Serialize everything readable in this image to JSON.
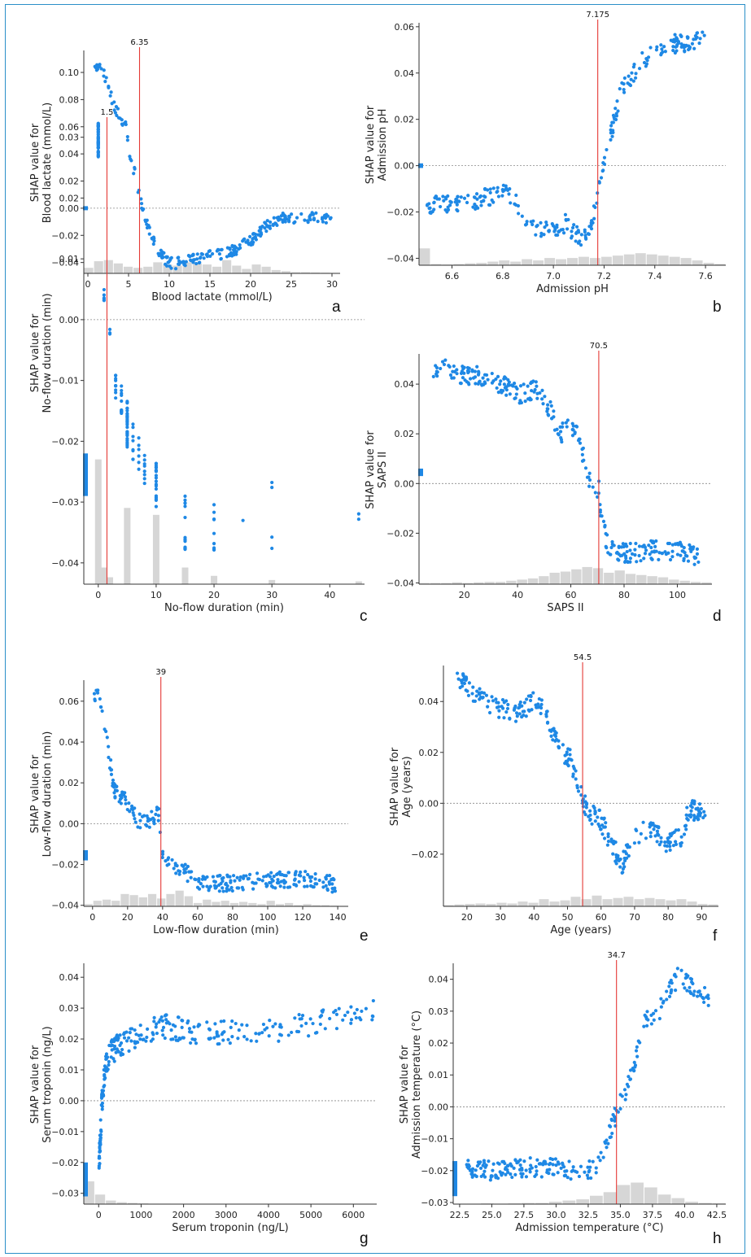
{
  "figure": {
    "border_color": "#2a8fc8",
    "point_color": "#1e88e5",
    "cut_line_color": "#e53935",
    "zero_line_color": "#888888",
    "hist_color": "#d6d6d6"
  },
  "chart_data": [
    {
      "panel": "a",
      "type": "scatter",
      "xlabel": "Blood lactate (mmol/L)",
      "ylabel": [
        "SHAP value for",
        "Blood lactate (mmol/L)"
      ],
      "xlim": [
        -0.5,
        31
      ],
      "ylim": [
        -0.048,
        0.115
      ],
      "xticks": [
        0,
        5,
        10,
        15,
        20,
        25,
        30
      ],
      "yticks": [
        -0.04,
        -0.02,
        0.0,
        0.02,
        0.04,
        0.06,
        0.08,
        0.1
      ],
      "ytick_labels": [
        "−0.04",
        "−0.02",
        "0.00",
        "0.02",
        "0.04",
        "0.06",
        "0.08",
        "0.10"
      ],
      "xtick_labels": [
        "0",
        "5",
        "10",
        "15",
        "20",
        "25",
        "30"
      ],
      "cutoff": {
        "value": 6.35,
        "label": "6.35"
      },
      "curve": [
        [
          0.7,
          0.106
        ],
        [
          1.5,
          0.103
        ],
        [
          2.5,
          0.092
        ],
        [
          3.2,
          0.075
        ],
        [
          4.0,
          0.066
        ],
        [
          4.6,
          0.062
        ],
        [
          5.0,
          0.045
        ],
        [
          5.6,
          0.03
        ],
        [
          6.3,
          0.012
        ],
        [
          7.0,
          -0.008
        ],
        [
          7.8,
          -0.02
        ],
        [
          8.6,
          -0.03
        ],
        [
          9.5,
          -0.038
        ],
        [
          10.5,
          -0.041
        ],
        [
          12.0,
          -0.039
        ],
        [
          14.0,
          -0.036
        ],
        [
          16.0,
          -0.034
        ],
        [
          18.0,
          -0.031
        ],
        [
          20.0,
          -0.024
        ],
        [
          22.0,
          -0.013
        ],
        [
          23.5,
          -0.008
        ],
        [
          25.0,
          -0.007
        ],
        [
          30.0,
          -0.007
        ]
      ],
      "noise": 0.004,
      "n_points": 260,
      "hist": [
        0.25,
        0.55,
        0.6,
        0.45,
        0.3,
        0.25,
        0.3,
        0.5,
        0.4,
        0.35,
        0.5,
        0.45,
        0.4,
        0.3,
        0.6,
        0.35,
        0.2,
        0.4,
        0.3,
        0.15,
        0.1,
        0.05,
        0.05,
        0.04,
        0.03,
        0.02
      ],
      "left_marker": {
        "y": 0.0,
        "h": 0.003
      }
    },
    {
      "panel": "b",
      "type": "scatter",
      "xlabel": "Admission pH",
      "ylabel": [
        "SHAP value for",
        "Admission pH"
      ],
      "xlim": [
        6.47,
        7.68
      ],
      "ylim": [
        -0.043,
        0.061
      ],
      "xticks": [
        6.6,
        6.8,
        7.0,
        7.2,
        7.4,
        7.6
      ],
      "yticks": [
        -0.04,
        -0.02,
        0.0,
        0.02,
        0.04,
        0.06
      ],
      "ytick_labels": [
        "−0.04",
        "−0.02",
        "0.00",
        "0.02",
        "0.04",
        "0.06"
      ],
      "xtick_labels": [
        "6.6",
        "6.8",
        "7.0",
        "7.2",
        "7.4",
        "7.6"
      ],
      "cutoff": {
        "value": 7.175,
        "label": "7.175"
      },
      "curve": [
        [
          6.5,
          -0.017
        ],
        [
          6.6,
          -0.016
        ],
        [
          6.7,
          -0.015
        ],
        [
          6.8,
          -0.011
        ],
        [
          6.85,
          -0.015
        ],
        [
          6.9,
          -0.026
        ],
        [
          6.95,
          -0.028
        ],
        [
          7.0,
          -0.027
        ],
        [
          7.05,
          -0.025
        ],
        [
          7.1,
          -0.031
        ],
        [
          7.15,
          -0.028
        ],
        [
          7.175,
          -0.01
        ],
        [
          7.2,
          0.0
        ],
        [
          7.23,
          0.015
        ],
        [
          7.26,
          0.03
        ],
        [
          7.3,
          0.038
        ],
        [
          7.35,
          0.045
        ],
        [
          7.4,
          0.05
        ],
        [
          7.45,
          0.052
        ],
        [
          7.5,
          0.053
        ],
        [
          7.6,
          0.054
        ]
      ],
      "noise": 0.004,
      "n_points": 280,
      "hist": [
        0.7,
        0.05,
        0.03,
        0.05,
        0.08,
        0.1,
        0.15,
        0.2,
        0.15,
        0.25,
        0.2,
        0.3,
        0.25,
        0.3,
        0.35,
        0.3,
        0.35,
        0.4,
        0.45,
        0.5,
        0.45,
        0.4,
        0.35,
        0.3,
        0.2,
        0.1,
        0.05
      ],
      "left_marker": {
        "y": 0.0,
        "h": 0.002
      }
    },
    {
      "panel": "c",
      "type": "scatter",
      "xlabel": "No-flow duration (min)",
      "ylabel": [
        "SHAP value for",
        "No-flow duration (min)"
      ],
      "xlim": [
        -2.5,
        46
      ],
      "ylim": [
        -0.0435,
        0.0325
      ],
      "xticks": [
        0,
        10,
        20,
        30,
        40
      ],
      "yticks": [
        -0.04,
        -0.03,
        -0.02,
        -0.01,
        0.0,
        0.01,
        0.02,
        0.03
      ],
      "ytick_labels": [
        "−0.04",
        "−0.03",
        "−0.02",
        "−0.01",
        "0.00",
        "0.01",
        "0.02",
        "0.03"
      ],
      "xtick_labels": [
        "0",
        "10",
        "20",
        "30",
        "40"
      ],
      "cutoff": {
        "value": 1.5,
        "label": "1.5"
      },
      "discrete": [
        [
          0,
          0.0295,
          0.003,
          50
        ],
        [
          1,
          0.004,
          0.001,
          6
        ],
        [
          2,
          -0.002,
          0.0005,
          3
        ],
        [
          3,
          -0.011,
          0.002,
          10
        ],
        [
          4,
          -0.013,
          0.0025,
          12
        ],
        [
          5,
          -0.017,
          0.004,
          30
        ],
        [
          6,
          -0.02,
          0.003,
          8
        ],
        [
          7,
          -0.022,
          0.003,
          6
        ],
        [
          8,
          -0.025,
          0.003,
          8
        ],
        [
          10,
          -0.027,
          0.004,
          20
        ],
        [
          15,
          -0.033,
          0.005,
          16
        ],
        [
          20,
          -0.034,
          0.004,
          10
        ],
        [
          25,
          -0.033,
          0.0005,
          1
        ],
        [
          30,
          -0.032,
          0.006,
          4
        ],
        [
          45,
          -0.033,
          0.003,
          2
        ]
      ],
      "hist_bars": [
        [
          0,
          0.9
        ],
        [
          1,
          0.12
        ],
        [
          2,
          0.05
        ],
        [
          5,
          0.55
        ],
        [
          10,
          0.5
        ],
        [
          15,
          0.12
        ],
        [
          20,
          0.06
        ],
        [
          30,
          0.03
        ],
        [
          45,
          0.02
        ]
      ],
      "left_marker": {
        "y": -0.0255,
        "h": 0.007
      }
    },
    {
      "panel": "d",
      "type": "scatter",
      "xlabel": "SAPS II",
      "ylabel": [
        "SHAP value for",
        "SAPS II"
      ],
      "xlim": [
        3,
        113
      ],
      "ylim": [
        -0.0405,
        0.0515
      ],
      "xticks": [
        20,
        40,
        60,
        80,
        100
      ],
      "yticks": [
        -0.04,
        -0.02,
        0.0,
        0.02,
        0.04
      ],
      "ytick_labels": [
        "−0.04",
        "−0.02",
        "0.00",
        "0.02",
        "0.04"
      ],
      "xtick_labels": [
        "20",
        "40",
        "60",
        "80",
        "100"
      ],
      "cutoff": {
        "value": 70.5,
        "label": "70.5"
      },
      "curve": [
        [
          8,
          0.047
        ],
        [
          20,
          0.044
        ],
        [
          30,
          0.042
        ],
        [
          40,
          0.036
        ],
        [
          47,
          0.038
        ],
        [
          52,
          0.03
        ],
        [
          56,
          0.02
        ],
        [
          60,
          0.025
        ],
        [
          63,
          0.018
        ],
        [
          66,
          0.005
        ],
        [
          68,
          0.0
        ],
        [
          70.5,
          -0.002
        ],
        [
          71.5,
          -0.015
        ],
        [
          74,
          -0.025
        ],
        [
          80,
          -0.028
        ],
        [
          90,
          -0.027
        ],
        [
          100,
          -0.027
        ],
        [
          108,
          -0.029
        ]
      ],
      "noise": 0.004,
      "n_points": 300,
      "hist": [
        0.05,
        0.05,
        0.05,
        0.08,
        0.05,
        0.08,
        0.1,
        0.1,
        0.15,
        0.2,
        0.25,
        0.35,
        0.5,
        0.55,
        0.65,
        0.75,
        0.7,
        0.5,
        0.6,
        0.45,
        0.4,
        0.35,
        0.3,
        0.2,
        0.15,
        0.1,
        0.08
      ],
      "left_marker": {
        "y": 0.0045,
        "h": 0.003
      }
    },
    {
      "panel": "e",
      "type": "scatter",
      "xlabel": "Low-flow duration (min)",
      "ylabel": [
        "SHAP value for",
        "Low-flow duration (min)"
      ],
      "xlim": [
        -5,
        146
      ],
      "ylim": [
        -0.0405,
        0.0695
      ],
      "xticks": [
        0,
        20,
        40,
        60,
        80,
        100,
        120,
        140
      ],
      "yticks": [
        -0.04,
        -0.02,
        0.0,
        0.02,
        0.04,
        0.06
      ],
      "ytick_labels": [
        "−0.04",
        "−0.02",
        "0.00",
        "0.02",
        "0.04",
        "0.06"
      ],
      "xtick_labels": [
        "0",
        "20",
        "40",
        "60",
        "80",
        "100",
        "120",
        "140"
      ],
      "cutoff": {
        "value": 39,
        "label": "39"
      },
      "curve": [
        [
          1,
          0.064
        ],
        [
          3,
          0.063
        ],
        [
          5,
          0.055
        ],
        [
          8,
          0.045
        ],
        [
          10,
          0.03
        ],
        [
          12,
          0.017
        ],
        [
          15,
          0.014
        ],
        [
          20,
          0.01
        ],
        [
          25,
          0.002
        ],
        [
          30,
          0.0
        ],
        [
          35,
          0.003
        ],
        [
          38,
          0.005
        ],
        [
          40,
          -0.015
        ],
        [
          45,
          -0.019
        ],
        [
          55,
          -0.025
        ],
        [
          60,
          -0.03
        ],
        [
          80,
          -0.029
        ],
        [
          100,
          -0.028
        ],
        [
          120,
          -0.027
        ],
        [
          140,
          -0.03
        ]
      ],
      "noise": 0.004,
      "n_points": 280,
      "hist": [
        0.1,
        0.25,
        0.3,
        0.25,
        0.55,
        0.5,
        0.4,
        0.55,
        0.35,
        0.55,
        0.7,
        0.45,
        0.15,
        0.3,
        0.2,
        0.25,
        0.15,
        0.2,
        0.15,
        0.1,
        0.25,
        0.1,
        0.15,
        0.05,
        0.1,
        0.05,
        0.05,
        0.03,
        0.02
      ],
      "left_marker": {
        "y": -0.0155,
        "h": 0.005
      }
    },
    {
      "panel": "f",
      "type": "scatter",
      "xlabel": "Age (years)",
      "ylabel": [
        "SHAP value for",
        "Age (years)"
      ],
      "xlim": [
        13,
        95
      ],
      "ylim": [
        -0.0405,
        0.0535
      ],
      "xticks": [
        20,
        30,
        40,
        50,
        60,
        70,
        80,
        90
      ],
      "yticks": [
        -0.02,
        0.0,
        0.02,
        0.04
      ],
      "ytick_labels": [
        "−0.02",
        "0.00",
        "0.02",
        "0.04"
      ],
      "xtick_labels": [
        "20",
        "30",
        "40",
        "50",
        "60",
        "70",
        "80",
        "90"
      ],
      "cutoff": {
        "value": 54.5,
        "label": "54.5"
      },
      "curve": [
        [
          17,
          0.05
        ],
        [
          20,
          0.046
        ],
        [
          25,
          0.04
        ],
        [
          30,
          0.037
        ],
        [
          35,
          0.035
        ],
        [
          40,
          0.04
        ],
        [
          43,
          0.038
        ],
        [
          45,
          0.03
        ],
        [
          48,
          0.02
        ],
        [
          51,
          0.017
        ],
        [
          53,
          0.007
        ],
        [
          54.5,
          0.002
        ],
        [
          56,
          -0.003
        ],
        [
          60,
          -0.007
        ],
        [
          64,
          -0.018
        ],
        [
          66,
          -0.025
        ],
        [
          70,
          -0.012
        ],
        [
          75,
          -0.01
        ],
        [
          80,
          -0.016
        ],
        [
          84,
          -0.013
        ],
        [
          86,
          -0.003
        ],
        [
          91,
          -0.002
        ]
      ],
      "noise": 0.004,
      "n_points": 320,
      "hist": [
        0.05,
        0.08,
        0.1,
        0.12,
        0.1,
        0.15,
        0.12,
        0.2,
        0.15,
        0.3,
        0.2,
        0.25,
        0.4,
        0.3,
        0.45,
        0.3,
        0.35,
        0.4,
        0.3,
        0.35,
        0.3,
        0.25,
        0.3,
        0.2,
        0.1,
        0.08
      ],
      "left_marker": null
    },
    {
      "panel": "g",
      "type": "scatter",
      "xlabel": "Serum troponin (ng/L)",
      "ylabel": [
        "SHAP value for",
        "Serum troponin (ng/L)"
      ],
      "xlim": [
        -350,
        6550
      ],
      "ylim": [
        -0.0335,
        0.044
      ],
      "xticks": [
        0,
        1000,
        2000,
        3000,
        4000,
        5000,
        6000
      ],
      "yticks": [
        -0.03,
        -0.02,
        -0.01,
        0.0,
        0.01,
        0.02,
        0.03,
        0.04
      ],
      "ytick_labels": [
        "−0.03",
        "−0.02",
        "−0.01",
        "0.00",
        "0.01",
        "0.02",
        "0.03",
        "0.04"
      ],
      "xtick_labels": [
        "0",
        "1000",
        "2000",
        "3000",
        "4000",
        "5000",
        "6000"
      ],
      "cutoff": null,
      "curve": [
        [
          10,
          -0.02
        ],
        [
          40,
          -0.012
        ],
        [
          80,
          0.0
        ],
        [
          150,
          0.01
        ],
        [
          300,
          0.016
        ],
        [
          600,
          0.019
        ],
        [
          1000,
          0.022
        ],
        [
          1500,
          0.024
        ],
        [
          2500,
          0.022
        ],
        [
          4000,
          0.022
        ],
        [
          5500,
          0.026
        ],
        [
          6500,
          0.03
        ]
      ],
      "noise": 0.004,
      "n_points": 280,
      "hist": [
        0.95,
        0.4,
        0.15,
        0.08,
        0.05,
        0.03,
        0.02,
        0.02,
        0.01,
        0.01,
        0.01,
        0.01,
        0.005,
        0.005,
        0.005,
        0.005,
        0.005,
        0.005,
        0.005,
        0.005,
        0.005,
        0.005,
        0.005,
        0.005,
        0.005,
        0.005,
        0.005
      ],
      "left_marker": {
        "y": -0.0255,
        "h": 0.011
      }
    },
    {
      "panel": "h",
      "type": "scatter",
      "xlabel": "Admission temperature (°C)",
      "ylabel": [
        "SHAP value for",
        "Admission temperature (°C)"
      ],
      "xlim": [
        22,
        43.2
      ],
      "ylim": [
        -0.0305,
        0.0445
      ],
      "xticks": [
        22.5,
        25.0,
        27.5,
        30.0,
        32.5,
        35.0,
        37.5,
        40.0,
        42.5
      ],
      "yticks": [
        -0.03,
        -0.02,
        -0.01,
        0.0,
        0.01,
        0.02,
        0.03,
        0.04
      ],
      "ytick_labels": [
        "−0.03",
        "−0.02",
        "−0.01",
        "0.00",
        "0.01",
        "0.02",
        "0.03",
        "0.04"
      ],
      "xtick_labels": [
        "22.5",
        "25.0",
        "27.5",
        "30.0",
        "32.5",
        "35.0",
        "37.5",
        "40.0",
        "42.5"
      ],
      "cutoff": {
        "value": 34.7,
        "label": "34.7"
      },
      "curve": [
        [
          23,
          -0.019
        ],
        [
          25,
          -0.02
        ],
        [
          28,
          -0.019
        ],
        [
          30,
          -0.019
        ],
        [
          31,
          -0.02
        ],
        [
          33,
          -0.02
        ],
        [
          34,
          -0.01
        ],
        [
          34.7,
          -0.002
        ],
        [
          35.2,
          0.003
        ],
        [
          36,
          0.012
        ],
        [
          36.5,
          0.02
        ],
        [
          37,
          0.027
        ],
        [
          37.5,
          0.028
        ],
        [
          38,
          0.03
        ],
        [
          39.5,
          0.041
        ],
        [
          41,
          0.037
        ],
        [
          42,
          0.033
        ]
      ],
      "noise": 0.003,
      "n_points": 260,
      "hist": [
        0.02,
        0.02,
        0.03,
        0.02,
        0.03,
        0.05,
        0.05,
        0.1,
        0.15,
        0.2,
        0.35,
        0.5,
        0.8,
        0.9,
        0.7,
        0.4,
        0.25,
        0.1,
        0.05,
        0.03
      ],
      "left_marker": {
        "y": -0.0225,
        "h": 0.011
      }
    }
  ]
}
